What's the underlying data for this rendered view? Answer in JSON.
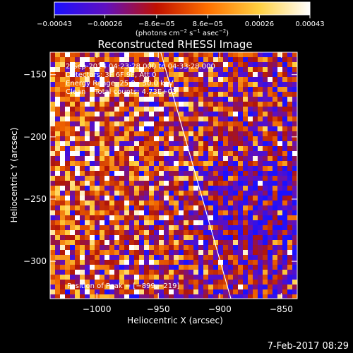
{
  "chart_data": {
    "type": "heatmap",
    "title": "Reconstructed RHESSI Image",
    "xlabel": "Heliocentric X (arcsec)",
    "ylabel": "Heliocentric Y (arcsec)",
    "xlim": [
      -1038,
      -837
    ],
    "ylim": [
      -330,
      -132
    ],
    "x_ticks": [
      {
        "value": -1000,
        "label": "−1000"
      },
      {
        "value": -950,
        "label": "−950"
      },
      {
        "value": -900,
        "label": "−900"
      },
      {
        "value": -850,
        "label": "−850"
      }
    ],
    "y_ticks": [
      {
        "value": -150,
        "label": "−150"
      },
      {
        "value": -200,
        "label": "−200"
      },
      {
        "value": -250,
        "label": "−250"
      },
      {
        "value": -300,
        "label": "−300"
      }
    ],
    "colorbar": {
      "range": [
        -0.00043,
        0.00043
      ],
      "ticks": [
        {
          "value": -0.00043,
          "label": "−0.00043"
        },
        {
          "value": -0.00026,
          "label": "−0.00026"
        },
        {
          "value": -8.6e-05,
          "label": "−8.6e−05"
        },
        {
          "value": 8.6e-05,
          "label": "8.6e−05"
        },
        {
          "value": 0.00026,
          "label": "0.00026"
        },
        {
          "value": 0.00043,
          "label": "0.00043"
        }
      ],
      "unit_parts": [
        "(photons cm",
        "−2",
        " s",
        "−1",
        " asec",
        "−2",
        ")"
      ],
      "colors": [
        "#1a10ff",
        "#6010c0",
        "#c01000",
        "#ff7000",
        "#ffd040",
        "#ffffff"
      ]
    },
    "annotations": [
      "2-Sep-2014 04:23:28.000 to 04:33:28.000",
      "Detectors: 3F 6F 9F, Att 0",
      "Energy Range: 25.0 - 50.0 keV",
      "Clean    Total counts: 4.73E+03"
    ],
    "peak_label": "Position of Peak = [−899,−219]",
    "peak": {
      "x": -899,
      "y": -219
    },
    "limb_line": [
      {
        "x": -948,
        "y": -132
      },
      {
        "x": -891,
        "y": -330
      }
    ]
  },
  "footer": {
    "timestamp": "7-Feb-2017 08:29"
  }
}
